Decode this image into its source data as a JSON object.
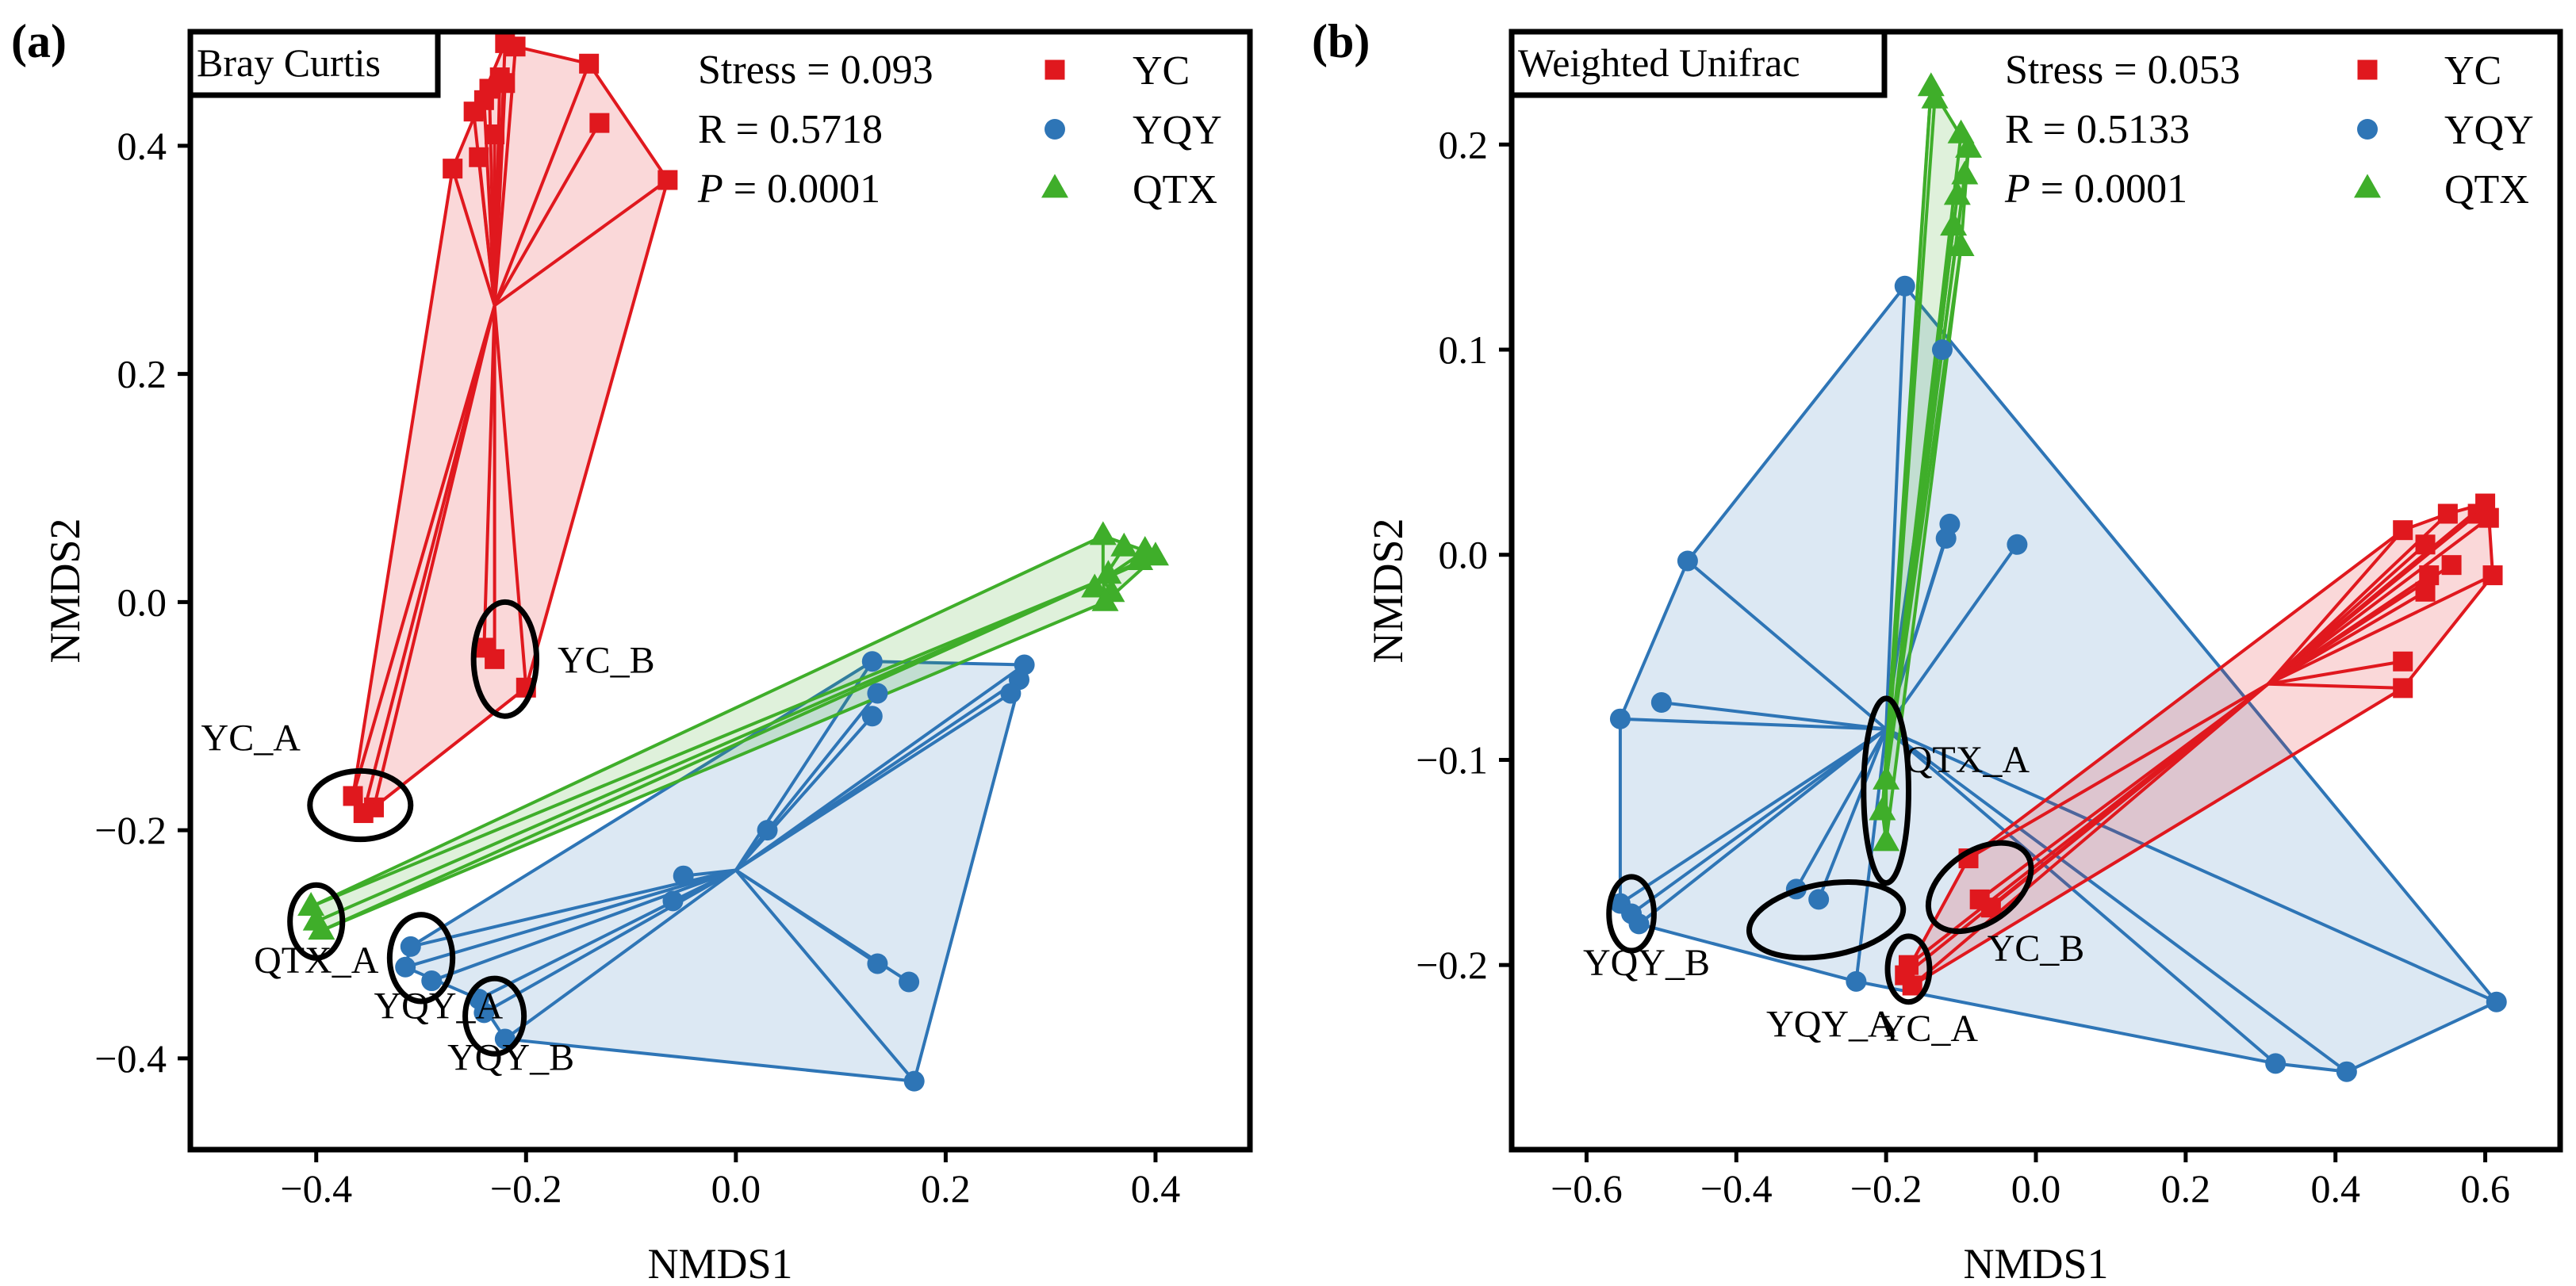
{
  "colors": {
    "YC": "#e0181e",
    "YQY": "#2e75b6",
    "QTX": "#3fae2a",
    "ellipse": "#000000"
  },
  "chart_data": [
    {
      "type": "scatter",
      "panel_label": "(a)",
      "title": "Bray Curtis",
      "xlabel": "NMDS1",
      "ylabel": "NMDS2",
      "xlim": [
        -0.52,
        0.49
      ],
      "ylim": [
        -0.48,
        0.5
      ],
      "xticks": [
        -0.4,
        -0.2,
        0.0,
        0.2,
        0.4
      ],
      "yticks": [
        -0.4,
        -0.2,
        0.0,
        0.2,
        0.4
      ],
      "xtick_labels": [
        "−0.4",
        "−0.2",
        "0.0",
        "0.2",
        "0.4"
      ],
      "ytick_labels": [
        "−0.4",
        "−0.2",
        "0.0",
        "0.2",
        "0.4"
      ],
      "stats": {
        "stress": "Stress = 0.093",
        "r": "R = 0.5718",
        "p_label": "P",
        "p_value": " = 0.0001"
      },
      "legend": [
        "YC",
        "YQY",
        "QTX"
      ],
      "series": [
        {
          "name": "YC",
          "marker": "square",
          "centroid": [
            -0.23,
            0.26
          ],
          "points": [
            [
              -0.22,
              0.49
            ],
            [
              -0.21,
              0.487
            ],
            [
              -0.14,
              0.472
            ],
            [
              -0.13,
              0.42
            ],
            [
              -0.065,
              0.37
            ],
            [
              -0.27,
              0.38
            ],
            [
              -0.225,
              0.46
            ],
            [
              -0.24,
              0.44
            ],
            [
              -0.235,
              0.45
            ],
            [
              -0.25,
              0.43
            ],
            [
              -0.245,
              0.39
            ],
            [
              -0.23,
              0.41
            ],
            [
              -0.22,
              0.455
            ],
            [
              -0.24,
              -0.04
            ],
            [
              -0.23,
              -0.05
            ],
            [
              -0.2,
              -0.075
            ],
            [
              -0.365,
              -0.17
            ],
            [
              -0.345,
              -0.18
            ],
            [
              -0.355,
              -0.185
            ]
          ],
          "hull": [
            [
              -0.22,
              0.49
            ],
            [
              -0.21,
              0.487
            ],
            [
              -0.14,
              0.472
            ],
            [
              -0.065,
              0.37
            ],
            [
              -0.2,
              -0.075
            ],
            [
              -0.345,
              -0.18
            ],
            [
              -0.355,
              -0.185
            ],
            [
              -0.365,
              -0.17
            ],
            [
              -0.27,
              0.38
            ]
          ]
        },
        {
          "name": "YQY",
          "marker": "circle",
          "centroid": [
            0.0,
            -0.235
          ],
          "points": [
            [
              0.13,
              -0.052
            ],
            [
              0.135,
              -0.08
            ],
            [
              0.13,
              -0.1
            ],
            [
              0.275,
              -0.055
            ],
            [
              0.27,
              -0.068
            ],
            [
              0.262,
              -0.08
            ],
            [
              0.03,
              -0.2
            ],
            [
              -0.05,
              -0.24
            ],
            [
              -0.06,
              -0.262
            ],
            [
              0.135,
              -0.317
            ],
            [
              0.165,
              -0.333
            ],
            [
              0.17,
              -0.42
            ],
            [
              -0.31,
              -0.302
            ],
            [
              -0.315,
              -0.32
            ],
            [
              -0.29,
              -0.332
            ],
            [
              -0.245,
              -0.348
            ],
            [
              -0.24,
              -0.36
            ],
            [
              -0.22,
              -0.383
            ]
          ],
          "hull": [
            [
              -0.31,
              -0.302
            ],
            [
              0.13,
              -0.052
            ],
            [
              0.275,
              -0.055
            ],
            [
              0.17,
              -0.42
            ],
            [
              -0.22,
              -0.383
            ],
            [
              -0.245,
              -0.348
            ],
            [
              -0.315,
              -0.32
            ]
          ]
        },
        {
          "name": "QTX",
          "marker": "triangle",
          "centroid": [
            0.35,
            0.02
          ],
          "points": [
            [
              0.35,
              0.058
            ],
            [
              0.37,
              0.048
            ],
            [
              0.39,
              0.045
            ],
            [
              0.4,
              0.04
            ],
            [
              0.385,
              0.036
            ],
            [
              0.355,
              0.024
            ],
            [
              0.342,
              0.012
            ],
            [
              0.358,
              0.008
            ],
            [
              0.352,
              0.0
            ],
            [
              -0.405,
              -0.267
            ],
            [
              -0.4,
              -0.28
            ],
            [
              -0.395,
              -0.288
            ]
          ],
          "hull": [
            [
              0.35,
              0.058
            ],
            [
              0.39,
              0.045
            ],
            [
              0.4,
              0.04
            ],
            [
              0.352,
              0.0
            ],
            [
              -0.395,
              -0.288
            ],
            [
              -0.405,
              -0.267
            ]
          ]
        }
      ],
      "annotations": [
        {
          "label": "YC_B",
          "center": [
            -0.22,
            -0.05
          ],
          "radii": [
            0.03,
            0.05
          ],
          "angle": 0,
          "label_pos": [
            -0.17,
            -0.062
          ],
          "anchor": "start"
        },
        {
          "label": "YC_A",
          "center": [
            -0.358,
            -0.178
          ],
          "radii": [
            0.048,
            0.03
          ],
          "angle": 0,
          "label_pos": [
            -0.415,
            -0.13
          ],
          "anchor": "end"
        },
        {
          "label": "QTX_A",
          "center": [
            -0.4,
            -0.28
          ],
          "radii": [
            0.025,
            0.032
          ],
          "angle": 0,
          "label_pos": [
            -0.4,
            -0.325
          ],
          "anchor": "middle"
        },
        {
          "label": "YQY_A",
          "center": [
            -0.3,
            -0.312
          ],
          "radii": [
            0.03,
            0.038
          ],
          "angle": 0,
          "label_pos": [
            -0.345,
            -0.365
          ],
          "anchor": "start"
        },
        {
          "label": "YQY_B",
          "center": [
            -0.23,
            -0.363
          ],
          "radii": [
            0.028,
            0.033
          ],
          "angle": 0,
          "label_pos": [
            -0.275,
            -0.41
          ],
          "anchor": "start"
        }
      ]
    },
    {
      "type": "scatter",
      "panel_label": "(b)",
      "title": "Weighted Unifrac",
      "xlabel": "NMDS1",
      "ylabel": "NMDS2",
      "xlim": [
        -0.7,
        0.7
      ],
      "ylim": [
        -0.29,
        0.255
      ],
      "xticks": [
        -0.6,
        -0.4,
        -0.2,
        0.0,
        0.2,
        0.4,
        0.6
      ],
      "yticks": [
        -0.2,
        -0.1,
        0.0,
        0.1,
        0.2
      ],
      "xtick_labels": [
        "−0.6",
        "−0.4",
        "−0.2",
        "0.0",
        "0.2",
        "0.4",
        "0.6"
      ],
      "ytick_labels": [
        "−0.2",
        "−0.1",
        "0.0",
        "0.1",
        "0.2"
      ],
      "stats": {
        "stress": "Stress = 0.053",
        "r": "R = 0.5133",
        "p_label": "P",
        "p_value": " = 0.0001"
      },
      "legend": [
        "YC",
        "YQY",
        "QTX"
      ],
      "series": [
        {
          "name": "YQY",
          "marker": "circle",
          "centroid": [
            -0.2,
            -0.085
          ],
          "points": [
            [
              -0.175,
              0.131
            ],
            [
              -0.125,
              0.1
            ],
            [
              -0.12,
              0.008
            ],
            [
              -0.115,
              0.015
            ],
            [
              -0.025,
              0.005
            ],
            [
              -0.465,
              -0.003
            ],
            [
              -0.5,
              -0.072
            ],
            [
              -0.555,
              -0.08
            ],
            [
              -0.555,
              -0.17
            ],
            [
              -0.54,
              -0.175
            ],
            [
              -0.53,
              -0.18
            ],
            [
              -0.32,
              -0.163
            ],
            [
              -0.29,
              -0.168
            ],
            [
              -0.24,
              -0.208
            ],
            [
              0.615,
              -0.218
            ],
            [
              0.32,
              -0.248
            ],
            [
              0.415,
              -0.252
            ]
          ],
          "hull": [
            [
              -0.175,
              0.131
            ],
            [
              0.615,
              -0.218
            ],
            [
              0.415,
              -0.252
            ],
            [
              0.32,
              -0.248
            ],
            [
              -0.24,
              -0.208
            ],
            [
              -0.53,
              -0.18
            ],
            [
              -0.555,
              -0.17
            ],
            [
              -0.555,
              -0.08
            ],
            [
              -0.465,
              -0.003
            ]
          ]
        },
        {
          "name": "QTX",
          "marker": "triangle",
          "centroid": [
            -0.2,
            -0.11
          ],
          "points": [
            [
              -0.14,
              0.228
            ],
            [
              -0.135,
              0.222
            ],
            [
              -0.1,
              0.205
            ],
            [
              -0.09,
              0.198
            ],
            [
              -0.095,
              0.185
            ],
            [
              -0.105,
              0.175
            ],
            [
              -0.11,
              0.16
            ],
            [
              -0.1,
              0.15
            ],
            [
              -0.2,
              -0.11
            ],
            [
              -0.205,
              -0.125
            ],
            [
              -0.2,
              -0.14
            ]
          ],
          "hull": [
            [
              -0.14,
              0.228
            ],
            [
              -0.09,
              0.198
            ],
            [
              -0.1,
              0.15
            ],
            [
              -0.2,
              -0.14
            ],
            [
              -0.205,
              -0.125
            ]
          ]
        },
        {
          "name": "YC",
          "marker": "square",
          "centroid": [
            0.31,
            -0.063
          ],
          "points": [
            [
              0.55,
              0.02
            ],
            [
              0.59,
              0.02
            ],
            [
              0.6,
              0.025
            ],
            [
              0.605,
              0.018
            ],
            [
              0.49,
              0.012
            ],
            [
              0.52,
              0.005
            ],
            [
              0.555,
              -0.005
            ],
            [
              0.525,
              -0.01
            ],
            [
              0.52,
              -0.018
            ],
            [
              0.61,
              -0.01
            ],
            [
              0.49,
              -0.052
            ],
            [
              0.49,
              -0.065
            ],
            [
              -0.09,
              -0.148
            ],
            [
              -0.075,
              -0.168
            ],
            [
              -0.06,
              -0.172
            ],
            [
              -0.17,
              -0.2
            ],
            [
              -0.175,
              -0.205
            ],
            [
              -0.165,
              -0.21
            ]
          ],
          "hull": [
            [
              0.6,
              0.025
            ],
            [
              0.605,
              0.018
            ],
            [
              0.61,
              -0.01
            ],
            [
              0.49,
              -0.065
            ],
            [
              -0.165,
              -0.21
            ],
            [
              -0.175,
              -0.205
            ],
            [
              -0.09,
              -0.148
            ],
            [
              0.49,
              0.012
            ],
            [
              0.55,
              0.02
            ]
          ]
        }
      ],
      "annotations": [
        {
          "label": "QTX_A",
          "center": [
            -0.2,
            -0.115
          ],
          "radii": [
            0.03,
            0.045
          ],
          "angle": 0,
          "label_pos": [
            -0.175,
            -0.106
          ],
          "anchor": "start"
        },
        {
          "label": "YC_B",
          "center": [
            -0.075,
            -0.162
          ],
          "radii": [
            0.048,
            0.028
          ],
          "angle": 55,
          "label_pos": [
            -0.065,
            -0.198
          ],
          "anchor": "start"
        },
        {
          "label": "YQY_B",
          "center": [
            -0.54,
            -0.175
          ],
          "radii": [
            0.03,
            0.018
          ],
          "angle": 0,
          "label_pos": [
            -0.52,
            -0.205
          ],
          "anchor": "middle"
        },
        {
          "label": "YQY_A",
          "center": [
            -0.28,
            -0.178
          ],
          "radii": [
            0.048,
            0.038
          ],
          "angle": 80,
          "label_pos": [
            -0.36,
            -0.235
          ],
          "anchor": "start"
        },
        {
          "label": "YC_A",
          "center": [
            -0.17,
            -0.202
          ],
          "radii": [
            0.028,
            0.016
          ],
          "angle": 0,
          "label_pos": [
            -0.21,
            -0.237
          ],
          "anchor": "start"
        }
      ]
    }
  ]
}
